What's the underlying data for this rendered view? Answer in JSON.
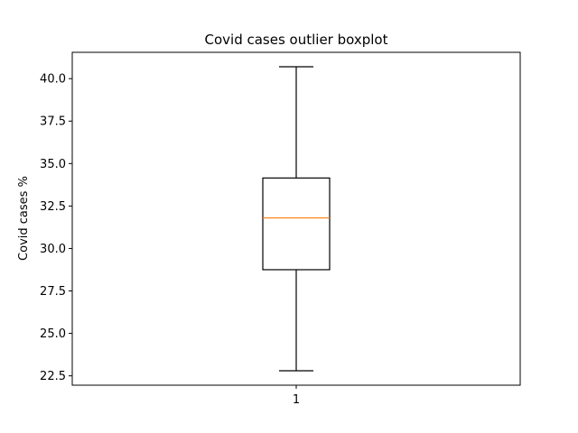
{
  "chart_data": {
    "type": "boxplot",
    "title": "Covid cases outlier boxplot",
    "xlabel": "",
    "ylabel": "Covid cases %",
    "ylim": [
      21.95,
      41.55
    ],
    "yticks": [
      22.5,
      25.0,
      27.5,
      30.0,
      32.5,
      35.0,
      37.5,
      40.0
    ],
    "ytick_labels": [
      "22.5",
      "25.0",
      "27.5",
      "30.0",
      "32.5",
      "35.0",
      "37.5",
      "40.0"
    ],
    "categories": [
      "1"
    ],
    "boxes": [
      {
        "label": "1",
        "whisker_low": 22.8,
        "q1": 28.75,
        "median": 31.8,
        "q3": 34.15,
        "whisker_high": 40.7
      }
    ],
    "grid": false,
    "colors": {
      "box": "#000000",
      "median": "#ff7f0e"
    }
  }
}
